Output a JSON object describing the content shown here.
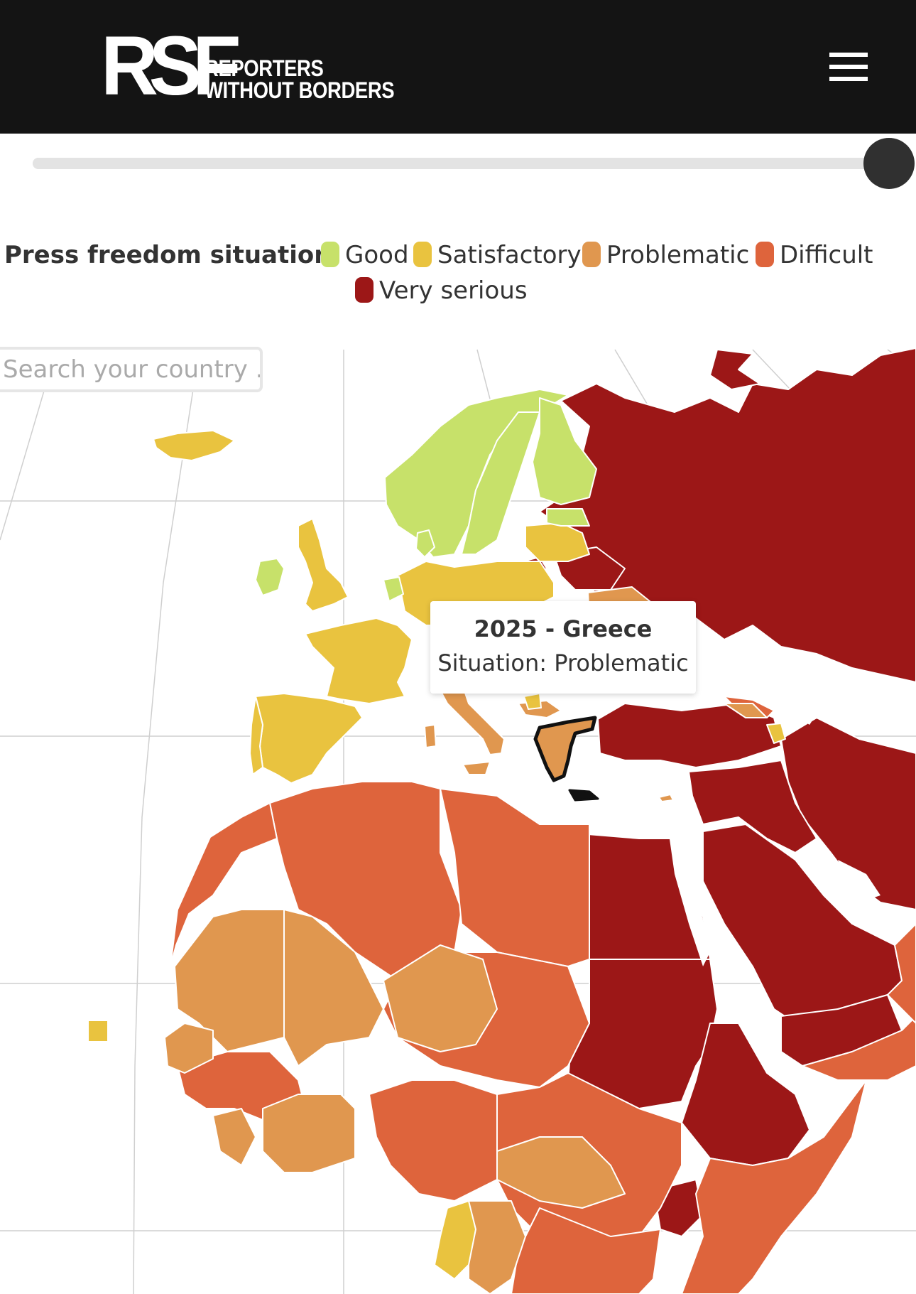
{
  "header": {
    "logo_mark": "RSF",
    "logo_line1": "REPORTERS",
    "logo_line2": "WITHOUT BORDERS",
    "menu_icon": "hamburger-icon"
  },
  "year_slider": {
    "position_percent": 100
  },
  "legend": {
    "title": "Press freedom situation:",
    "items": [
      {
        "label": "Good",
        "color": "#c7e16a"
      },
      {
        "label": "Satisfactory",
        "color": "#e9c33f"
      },
      {
        "label": "Problematic",
        "color": "#e0974f"
      },
      {
        "label": "Difficult",
        "color": "#de643c"
      },
      {
        "label": "Very serious",
        "color": "#9c1717"
      }
    ]
  },
  "search": {
    "placeholder": "Search your country ..."
  },
  "tooltip": {
    "title": "2025 - Greece",
    "subtitle": "Situation: Problematic"
  }
}
